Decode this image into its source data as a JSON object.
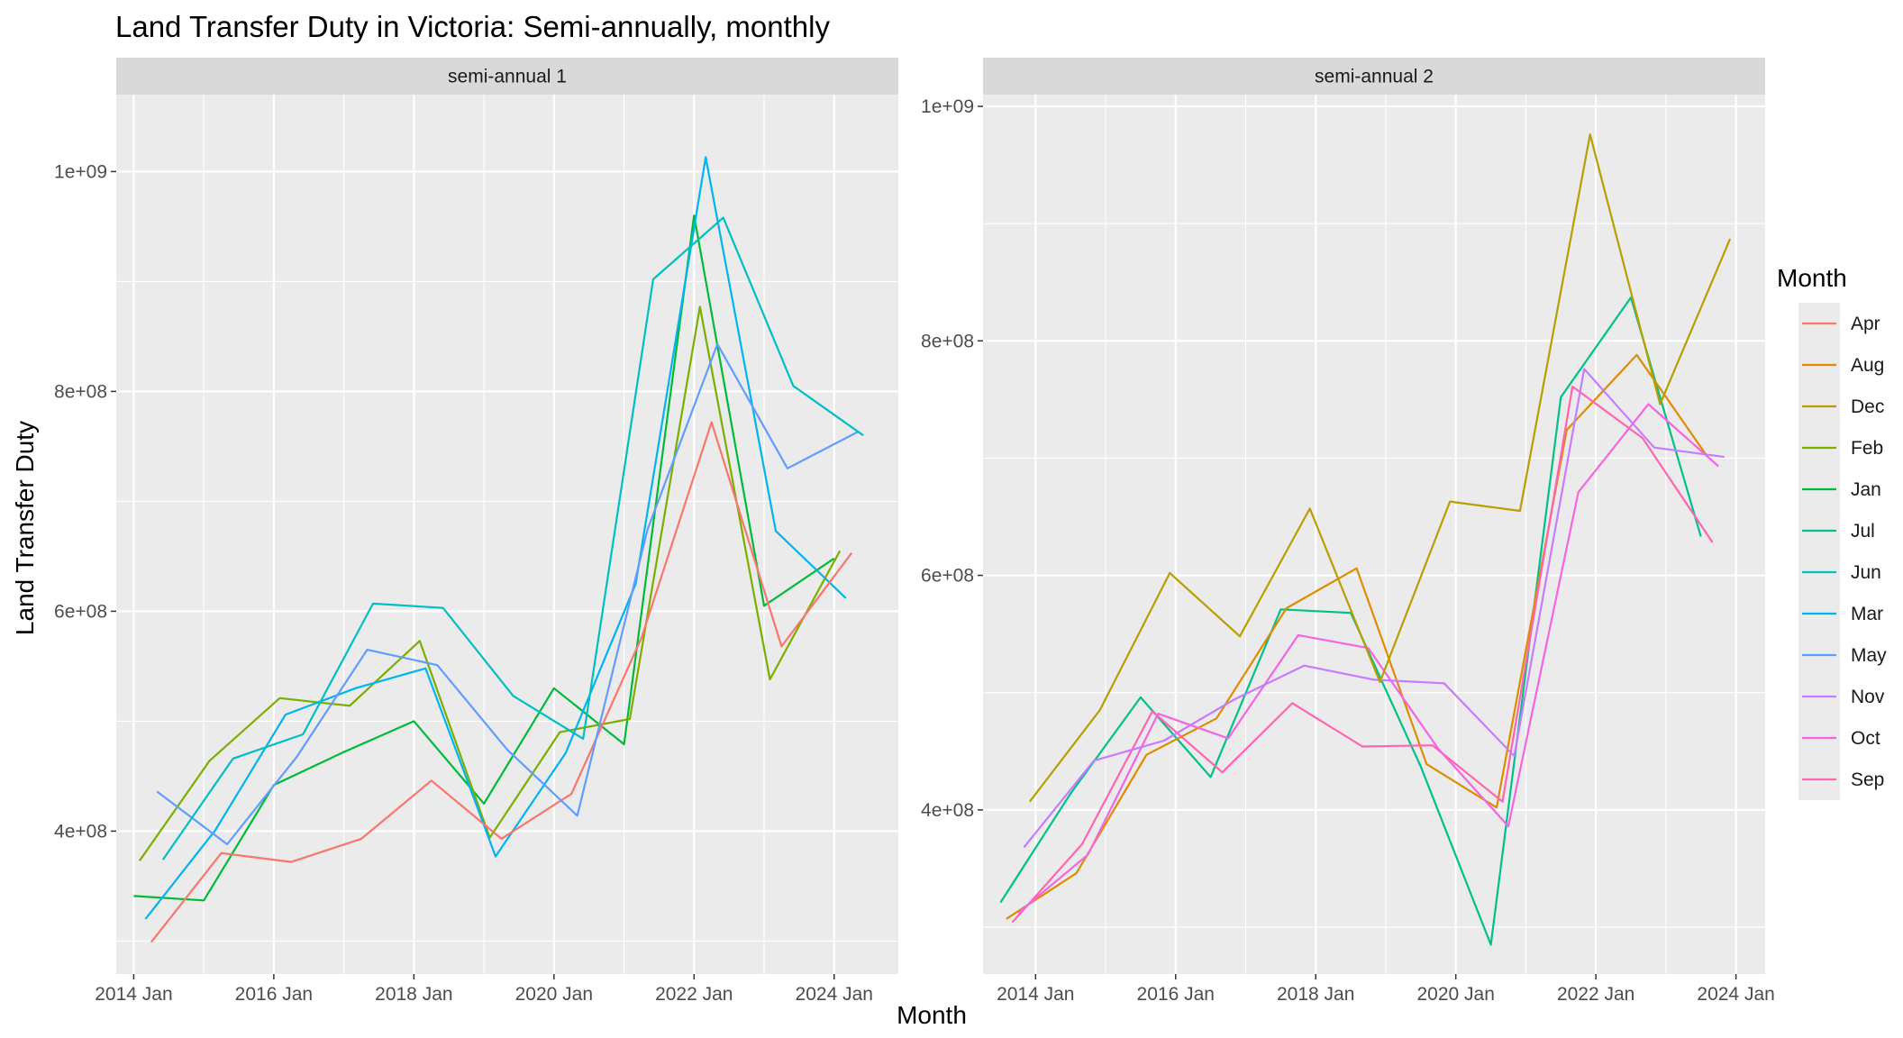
{
  "chart_data": {
    "type": "line",
    "title": "Land Transfer Duty in Victoria: Semi-annually, monthly",
    "xlabel": "Month",
    "ylabel": "Land Transfer Duty",
    "legend": {
      "title": "Month",
      "placement": "right"
    },
    "series_colors": {
      "Apr": "#F8766D",
      "Aug": "#DE8C00",
      "Dec": "#B79F00",
      "Feb": "#7CAE00",
      "Jan": "#00BA38",
      "Jul": "#00C08B",
      "Jun": "#00BFC4",
      "Mar": "#00B4F0",
      "May": "#619CFF",
      "Nov": "#C77CFF",
      "Oct": "#F564E3",
      "Sep": "#FF64B0"
    },
    "panels": [
      {
        "strip": "semi-annual 1",
        "x_ticks": [
          "2014 Jan",
          "2016 Jan",
          "2018 Jan",
          "2020 Jan",
          "2022 Jan",
          "2024 Jan"
        ],
        "y_ticks": [
          "4e+08",
          "6e+08",
          "8e+08",
          "1e+09"
        ],
        "ylim": [
          270000000,
          1070000000
        ],
        "xlim": [
          "2013-10",
          "2024-12"
        ],
        "series": [
          {
            "name": "Jan",
            "x": [
              "2014-01",
              "2015-01",
              "2016-01",
              "2017-01",
              "2018-01",
              "2019-01",
              "2020-01",
              "2021-01",
              "2022-01",
              "2023-01",
              "2024-01"
            ],
            "values": [
              341000000,
              337000000,
              442000000,
              472000000,
              500000000,
              425000000,
              530000000,
              479000000,
              960000000,
              605000000,
              648000000
            ]
          },
          {
            "name": "Feb",
            "x": [
              "2014-02",
              "2015-02",
              "2016-02",
              "2017-02",
              "2018-02",
              "2019-02",
              "2020-02",
              "2021-02",
              "2022-02",
              "2023-02",
              "2024-02"
            ],
            "values": [
              373000000,
              464000000,
              521000000,
              514000000,
              573000000,
              394000000,
              490000000,
              502000000,
              877000000,
              538000000,
              655000000
            ]
          },
          {
            "name": "Mar",
            "x": [
              "2014-03",
              "2015-03",
              "2016-03",
              "2017-03",
              "2018-03",
              "2019-03",
              "2020-03",
              "2021-03",
              "2022-03",
              "2023-03",
              "2024-03"
            ],
            "values": [
              320000000,
              401000000,
              506000000,
              530000000,
              548000000,
              377000000,
              471000000,
              625000000,
              1013000000,
              673000000,
              612000000
            ]
          },
          {
            "name": "Apr",
            "x": [
              "2014-04",
              "2015-04",
              "2016-04",
              "2017-04",
              "2018-04",
              "2019-04",
              "2020-04",
              "2021-04",
              "2022-04",
              "2023-04",
              "2024-04"
            ],
            "values": [
              299000000,
              380000000,
              372000000,
              393000000,
              446000000,
              393000000,
              434000000,
              576000000,
              772000000,
              568000000,
              653000000
            ]
          },
          {
            "name": "May",
            "x": [
              "2014-05",
              "2015-05",
              "2016-05",
              "2017-05",
              "2018-05",
              "2019-05",
              "2020-05",
              "2021-05",
              "2022-05",
              "2023-05",
              "2024-05"
            ],
            "values": [
              436000000,
              388000000,
              468000000,
              565000000,
              551000000,
              474000000,
              414000000,
              674000000,
              843000000,
              730000000,
              763000000
            ]
          },
          {
            "name": "Jun",
            "x": [
              "2014-06",
              "2015-06",
              "2016-06",
              "2017-06",
              "2018-06",
              "2019-06",
              "2020-06",
              "2021-06",
              "2022-06",
              "2023-06",
              "2024-06"
            ],
            "values": [
              374000000,
              466000000,
              488000000,
              607000000,
              603000000,
              523000000,
              484000000,
              902000000,
              958000000,
              805000000,
              760000000
            ]
          }
        ]
      },
      {
        "strip": "semi-annual 2",
        "x_ticks": [
          "2014 Jan",
          "2016 Jan",
          "2018 Jan",
          "2020 Jan",
          "2022 Jan",
          "2024 Jan"
        ],
        "y_ticks": [
          "4e+08",
          "6e+08",
          "8e+08",
          "1e+09"
        ],
        "ylim": [
          260000000,
          1010000000
        ],
        "xlim": [
          "2013-04",
          "2024-06"
        ],
        "series": [
          {
            "name": "Jul",
            "x": [
              "2013-07",
              "2014-07",
              "2015-07",
              "2016-07",
              "2017-07",
              "2018-07",
              "2019-07",
              "2020-07",
              "2021-07",
              "2022-07",
              "2023-07"
            ],
            "values": [
              321000000,
              414000000,
              496000000,
              428000000,
              571000000,
              568000000,
              437000000,
              285000000,
              752000000,
              837000000,
              633000000
            ]
          },
          {
            "name": "Aug",
            "x": [
              "2013-08",
              "2014-08",
              "2015-08",
              "2016-08",
              "2017-08",
              "2018-08",
              "2019-08",
              "2020-08",
              "2021-08",
              "2022-08",
              "2023-08"
            ],
            "values": [
              307000000,
              346000000,
              447000000,
              478000000,
              572000000,
              606000000,
              439000000,
              402000000,
              724000000,
              788000000,
              702000000
            ]
          },
          {
            "name": "Sep",
            "x": [
              "2013-09",
              "2014-09",
              "2015-09",
              "2016-09",
              "2017-09",
              "2018-09",
              "2019-09",
              "2020-09",
              "2021-09",
              "2022-09",
              "2023-09"
            ],
            "values": [
              304000000,
              371000000,
              484000000,
              432000000,
              491000000,
              454000000,
              455000000,
              407000000,
              761000000,
              717000000,
              628000000
            ]
          },
          {
            "name": "Oct",
            "x": [
              "2013-10",
              "2014-10",
              "2015-10",
              "2016-10",
              "2017-10",
              "2018-10",
              "2019-10",
              "2020-10",
              "2021-10",
              "2022-10",
              "2023-10"
            ],
            "values": [
              312000000,
              362000000,
              482000000,
              461000000,
              549000000,
              538000000,
              452000000,
              386000000,
              671000000,
              746000000,
              693000000
            ]
          },
          {
            "name": "Nov",
            "x": [
              "2013-11",
              "2014-11",
              "2015-11",
              "2016-11",
              "2017-11",
              "2018-11",
              "2019-11",
              "2020-11",
              "2021-11",
              "2022-11",
              "2023-11"
            ],
            "values": [
              368000000,
              442000000,
              459000000,
              494000000,
              523000000,
              511000000,
              508000000,
              446000000,
              776000000,
              709000000,
              701000000
            ]
          },
          {
            "name": "Dec",
            "x": [
              "2013-12",
              "2014-12",
              "2015-12",
              "2016-12",
              "2017-12",
              "2018-12",
              "2019-12",
              "2020-12",
              "2021-12",
              "2022-12",
              "2023-12"
            ],
            "values": [
              407000000,
              485000000,
              602000000,
              548000000,
              657000000,
              509000000,
              663000000,
              655000000,
              976000000,
              746000000,
              887000000
            ]
          }
        ]
      }
    ]
  }
}
